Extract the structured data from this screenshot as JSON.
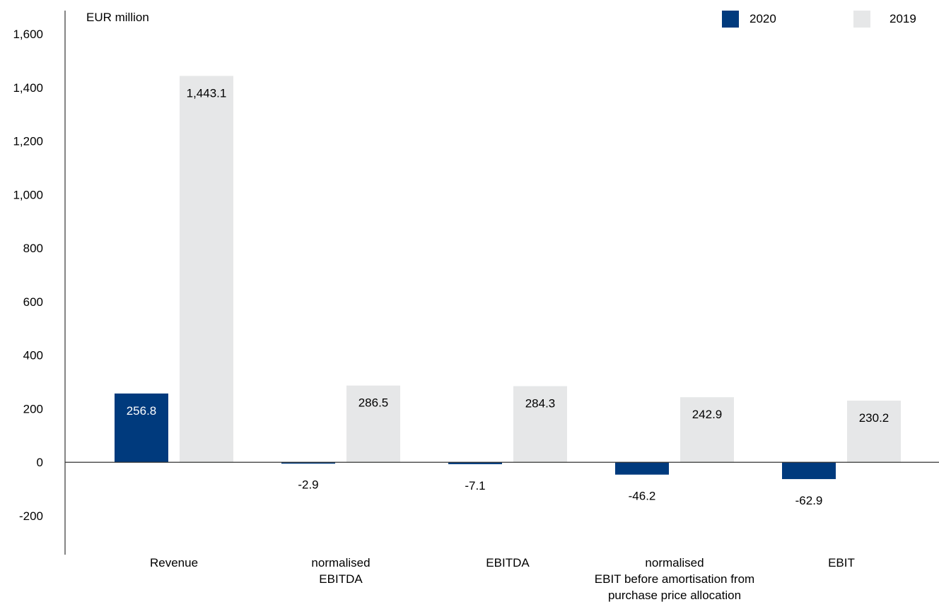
{
  "colors": {
    "series_2020": "#003A7D",
    "series_2019": "#E6E7E8",
    "axis": "#333333"
  },
  "chart_data": {
    "type": "bar",
    "unit_label": "EUR million",
    "categories": [
      [
        "Revenue"
      ],
      [
        "normalised",
        "EBITDA"
      ],
      [
        "EBITDA"
      ],
      [
        "normalised",
        "EBIT before amortisation from",
        "purchase price allocation"
      ],
      [
        "EBIT"
      ]
    ],
    "series": [
      {
        "name": "2020",
        "values": [
          256.8,
          -2.9,
          -7.1,
          -46.2,
          -62.9
        ],
        "labels": [
          "256.8",
          "-2.9",
          "-7.1",
          "-46.2",
          "-62.9"
        ]
      },
      {
        "name": "2019",
        "values": [
          1443.1,
          286.5,
          284.3,
          242.9,
          230.2
        ],
        "labels": [
          "1,443.1",
          "286.5",
          "284.3",
          "242.9",
          "230.2"
        ]
      }
    ],
    "ylim": [
      -200,
      1600
    ],
    "yticks": [
      -200,
      0,
      200,
      400,
      600,
      800,
      1000,
      1200,
      1400,
      1600
    ],
    "ytick_labels": [
      "-200",
      "0",
      "200",
      "400",
      "600",
      "800",
      "1,000",
      "1,200",
      "1,400",
      "1,600"
    ],
    "legend_position": "top-right",
    "grid": false
  }
}
